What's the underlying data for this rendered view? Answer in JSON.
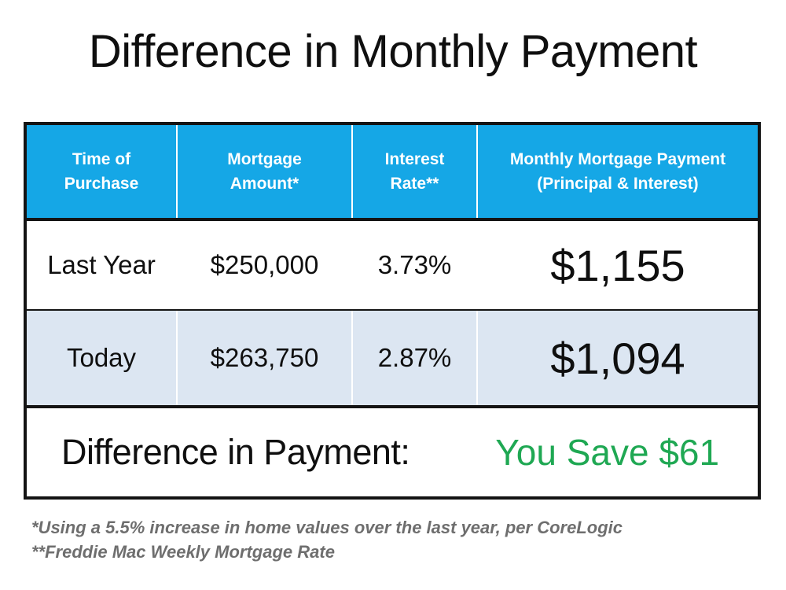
{
  "title": "Difference in Monthly Payment",
  "table": {
    "headers": [
      "Time of\nPurchase",
      "Mortgage\nAmount*",
      "Interest\nRate**",
      "Monthly Mortgage Payment\n(Principal & Interest)"
    ],
    "rows": [
      {
        "time": "Last Year",
        "amount": "$250,000",
        "rate": "3.73%",
        "payment": "$1,155"
      },
      {
        "time": "Today",
        "amount": "$263,750",
        "rate": "2.87%",
        "payment": "$1,094"
      }
    ],
    "summary": {
      "label": "Difference in Payment:",
      "value": "You Save $61"
    }
  },
  "footnotes": [
    "*Using a 5.5% increase in home values over the last year, per CoreLogic",
    "**Freddie Mac Weekly Mortgage Rate"
  ],
  "colors": {
    "header_blue": "#15a7e6",
    "alt_row_blue": "#dce6f2",
    "savings_green": "#1fa853",
    "footnote_gray": "#6e6e6e",
    "border_black": "#141414"
  },
  "chart_data": {
    "type": "table",
    "title": "Difference in Monthly Payment",
    "columns": [
      "Time of Purchase",
      "Mortgage Amount*",
      "Interest Rate**",
      "Monthly Mortgage Payment (Principal & Interest)"
    ],
    "rows": [
      [
        "Last Year",
        "$250,000",
        "3.73%",
        "$1,155"
      ],
      [
        "Today",
        "$263,750",
        "2.87%",
        "$1,094"
      ]
    ],
    "summary_row": [
      "Difference in Payment:",
      "You Save $61"
    ],
    "numeric": {
      "mortgage_amounts": [
        250000,
        263750
      ],
      "interest_rates_pct": [
        3.73,
        2.87
      ],
      "monthly_payments": [
        1155,
        1094
      ],
      "monthly_savings": 61,
      "home_value_increase_pct": 5.5
    },
    "notes": [
      "*Using a 5.5% increase in home values over the last year, per CoreLogic",
      "**Freddie Mac Weekly Mortgage Rate"
    ]
  }
}
